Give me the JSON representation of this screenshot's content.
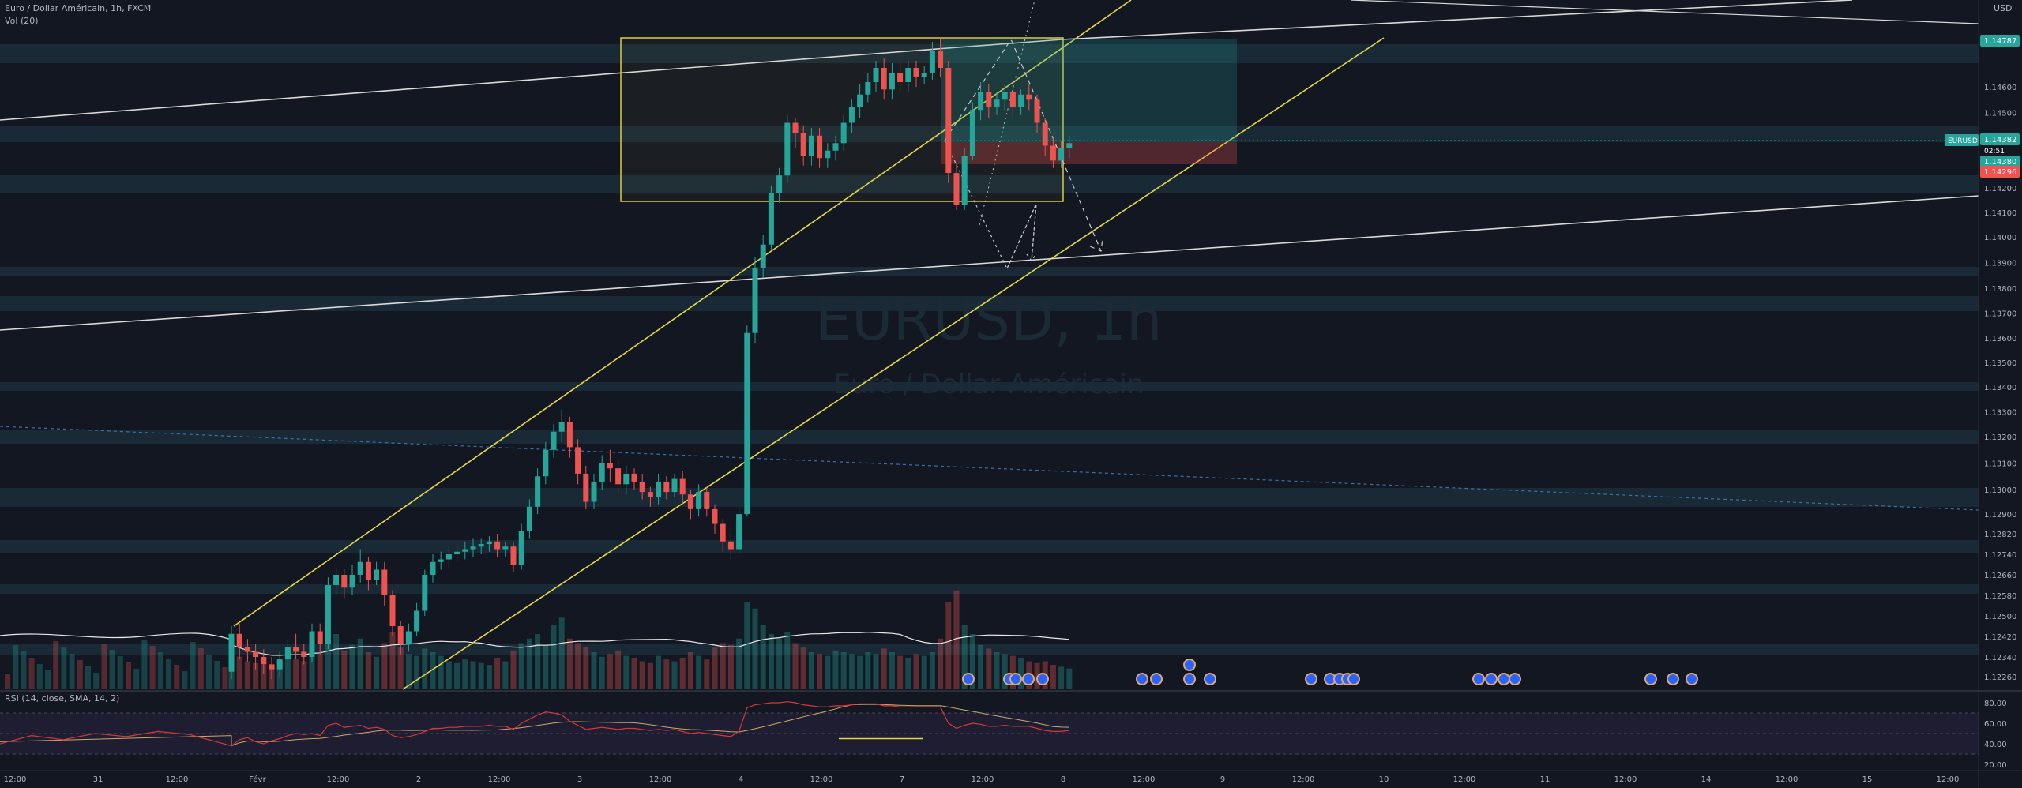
{
  "header": {
    "symbol_line": "Euro / Dollar Américain, 1h, FXCM",
    "vol_label": "Vol (20)",
    "currency": "USD"
  },
  "watermark": {
    "symbol": "EURUSD, 1h",
    "name": "Euro / Dollar Américain"
  },
  "rsi": {
    "label": "RSI (14, close, SMA, 14, 2)",
    "ticks": [
      "80.00",
      "60.00",
      "40.00",
      "20.00"
    ],
    "tick_values": [
      80,
      60,
      40,
      20
    ]
  },
  "colors": {
    "background": "#131722",
    "bull": "#26a69a",
    "bear": "#ef5350",
    "channel": "#e6d84a",
    "zone": "#1f3b47",
    "white_line": "#d9d9d9"
  },
  "price_badges": {
    "symbol": "EURUSD",
    "top_label": "1.14787",
    "current": "1.14382",
    "countdown": "02:51",
    "mid": "1.14380",
    "low": "1.14296"
  },
  "chart_data": {
    "type": "candlestick",
    "title": "EURUSD, 1h",
    "y_axis_ticks": [
      "1.14600",
      "1.14500",
      "1.14400",
      "1.14200",
      "1.14100",
      "1.14000",
      "1.13900",
      "1.13800",
      "1.13700",
      "1.13600",
      "1.13500",
      "1.13400",
      "1.13300",
      "1.13200",
      "1.13100",
      "1.13000",
      "1.12900",
      "1.12820",
      "1.12740",
      "1.12660",
      "1.12580",
      "1.12500",
      "1.12420",
      "1.12340",
      "1.12260"
    ],
    "y_axis_values": [
      1.146,
      1.145,
      1.144,
      1.142,
      1.141,
      1.14,
      1.139,
      1.138,
      1.137,
      1.136,
      1.135,
      1.134,
      1.133,
      1.132,
      1.131,
      1.13,
      1.129,
      1.1282,
      1.1274,
      1.1266,
      1.1258,
      1.125,
      1.1242,
      1.1234,
      1.1226
    ],
    "x_axis_ticks": [
      "12:00",
      "31",
      "12:00",
      "Févr",
      "12:00",
      "2",
      "12:00",
      "3",
      "12:00",
      "4",
      "12:00",
      "7",
      "12:00",
      "8",
      "12:00",
      "9",
      "12:00",
      "10",
      "12:00",
      "11",
      "12:00",
      "14",
      "12:00",
      "15",
      "12:00"
    ],
    "candles": [
      [
        1.1228,
        1.1243,
        1.1225,
        1.1246
      ],
      [
        1.1243,
        1.1238,
        1.1233,
        1.1247
      ],
      [
        1.1238,
        1.1236,
        1.1232,
        1.1241
      ],
      [
        1.1236,
        1.1234,
        1.1229,
        1.1239
      ],
      [
        1.1234,
        1.1231,
        1.1227,
        1.1237
      ],
      [
        1.1231,
        1.1229,
        1.1225,
        1.1234
      ],
      [
        1.1229,
        1.1233,
        1.1226,
        1.1236
      ],
      [
        1.1233,
        1.1238,
        1.123,
        1.1241
      ],
      [
        1.1238,
        1.1236,
        1.1233,
        1.1243
      ],
      [
        1.1236,
        1.1234,
        1.1231,
        1.1239
      ],
      [
        1.1234,
        1.1244,
        1.1232,
        1.1247
      ],
      [
        1.1244,
        1.1239,
        1.1235,
        1.1247
      ],
      [
        1.1239,
        1.1262,
        1.1237,
        1.1265
      ],
      [
        1.1262,
        1.1266,
        1.1258,
        1.1269
      ],
      [
        1.1266,
        1.1261,
        1.1257,
        1.1268
      ],
      [
        1.1261,
        1.1266,
        1.1258,
        1.127
      ],
      [
        1.1266,
        1.1271,
        1.1263,
        1.1276
      ],
      [
        1.1271,
        1.1264,
        1.126,
        1.1273
      ],
      [
        1.1264,
        1.1268,
        1.1262,
        1.1271
      ],
      [
        1.1268,
        1.1258,
        1.1254,
        1.1271
      ],
      [
        1.1258,
        1.1246,
        1.1242,
        1.126
      ],
      [
        1.1246,
        1.1239,
        1.1235,
        1.1248
      ],
      [
        1.1239,
        1.1244,
        1.1236,
        1.1247
      ],
      [
        1.1244,
        1.1252,
        1.1242,
        1.1255
      ],
      [
        1.1252,
        1.1266,
        1.125,
        1.1268
      ],
      [
        1.1266,
        1.1271,
        1.1263,
        1.1274
      ],
      [
        1.1271,
        1.1272,
        1.1268,
        1.1275
      ],
      [
        1.1272,
        1.1274,
        1.1269,
        1.1277
      ],
      [
        1.1274,
        1.1275,
        1.1271,
        1.1278
      ],
      [
        1.1275,
        1.1276,
        1.1272,
        1.1279
      ],
      [
        1.1276,
        1.1277,
        1.1273,
        1.128
      ],
      [
        1.1277,
        1.1278,
        1.1274,
        1.128
      ],
      [
        1.1278,
        1.1279,
        1.1275,
        1.1281
      ],
      [
        1.1279,
        1.1276,
        1.1273,
        1.1282
      ],
      [
        1.1276,
        1.1277,
        1.1273,
        1.1279
      ],
      [
        1.1277,
        1.127,
        1.1267,
        1.1279
      ],
      [
        1.127,
        1.1283,
        1.1268,
        1.1286
      ],
      [
        1.1283,
        1.1293,
        1.128,
        1.1296
      ],
      [
        1.1293,
        1.1305,
        1.129,
        1.1308
      ],
      [
        1.1305,
        1.1315,
        1.1302,
        1.1318
      ],
      [
        1.1315,
        1.1322,
        1.1312,
        1.1325
      ],
      [
        1.1322,
        1.1326,
        1.1318,
        1.1331
      ],
      [
        1.1326,
        1.1316,
        1.1312,
        1.1328
      ],
      [
        1.1316,
        1.1306,
        1.1302,
        1.1319
      ],
      [
        1.1306,
        1.1295,
        1.1292,
        1.1309
      ],
      [
        1.1295,
        1.1303,
        1.1292,
        1.1306
      ],
      [
        1.1303,
        1.131,
        1.13,
        1.1313
      ],
      [
        1.131,
        1.1308,
        1.1303,
        1.1315
      ],
      [
        1.1308,
        1.1302,
        1.1298,
        1.1311
      ],
      [
        1.1302,
        1.1306,
        1.1298,
        1.1309
      ],
      [
        1.1306,
        1.1303,
        1.13,
        1.1308
      ],
      [
        1.1303,
        1.1299,
        1.1296,
        1.1306
      ],
      [
        1.1299,
        1.1297,
        1.1293,
        1.1301
      ],
      [
        1.1297,
        1.1303,
        1.1294,
        1.1306
      ],
      [
        1.1303,
        1.1299,
        1.1296,
        1.1305
      ],
      [
        1.1299,
        1.1304,
        1.1297,
        1.1306
      ],
      [
        1.1304,
        1.1298,
        1.1294,
        1.1307
      ],
      [
        1.1298,
        1.1292,
        1.1288,
        1.13
      ],
      [
        1.1292,
        1.1299,
        1.1289,
        1.1302
      ],
      [
        1.1299,
        1.1292,
        1.1289,
        1.1301
      ],
      [
        1.1292,
        1.1286,
        1.1282,
        1.1294
      ],
      [
        1.1286,
        1.1279,
        1.1275,
        1.1288
      ],
      [
        1.1279,
        1.1276,
        1.1272,
        1.1282
      ],
      [
        1.1276,
        1.129,
        1.1274,
        1.1293
      ],
      [
        1.129,
        1.1362,
        1.1289,
        1.1365
      ],
      [
        1.1362,
        1.1388,
        1.1358,
        1.1392
      ],
      [
        1.1388,
        1.1397,
        1.1384,
        1.1401
      ],
      [
        1.1397,
        1.1418,
        1.1395,
        1.1421
      ],
      [
        1.1418,
        1.1425,
        1.1414,
        1.1428
      ],
      [
        1.1425,
        1.1446,
        1.1422,
        1.1449
      ],
      [
        1.1446,
        1.1442,
        1.1436,
        1.1448
      ],
      [
        1.1442,
        1.1433,
        1.1429,
        1.1445
      ],
      [
        1.1433,
        1.1441,
        1.1429,
        1.1444
      ],
      [
        1.1441,
        1.1432,
        1.1428,
        1.1444
      ],
      [
        1.1432,
        1.1435,
        1.1428,
        1.1438
      ],
      [
        1.1435,
        1.1438,
        1.1431,
        1.1441
      ],
      [
        1.1438,
        1.1446,
        1.1435,
        1.1449
      ],
      [
        1.1446,
        1.1452,
        1.1442,
        1.1455
      ],
      [
        1.1452,
        1.1457,
        1.1448,
        1.1461
      ],
      [
        1.1457,
        1.1462,
        1.1454,
        1.1466
      ],
      [
        1.1462,
        1.1468,
        1.1458,
        1.1471
      ],
      [
        1.1468,
        1.1459,
        1.1455,
        1.1472
      ],
      [
        1.1459,
        1.1466,
        1.1455,
        1.147
      ],
      [
        1.1466,
        1.1462,
        1.1458,
        1.147
      ],
      [
        1.1462,
        1.1468,
        1.1458,
        1.1471
      ],
      [
        1.1468,
        1.1464,
        1.146,
        1.1471
      ],
      [
        1.1464,
        1.1466,
        1.1461,
        1.1469
      ],
      [
        1.1466,
        1.1475,
        1.1463,
        1.1479
      ],
      [
        1.1475,
        1.1468,
        1.1464,
        1.148
      ],
      [
        1.1468,
        1.1426,
        1.1422,
        1.1471
      ],
      [
        1.1426,
        1.1413,
        1.1411,
        1.143
      ],
      [
        1.1413,
        1.1433,
        1.1411,
        1.1436
      ],
      [
        1.1433,
        1.1451,
        1.1431,
        1.1454
      ],
      [
        1.1451,
        1.1458,
        1.1447,
        1.1462
      ],
      [
        1.1458,
        1.1452,
        1.1448,
        1.1461
      ],
      [
        1.1452,
        1.1455,
        1.1449,
        1.1458
      ],
      [
        1.1455,
        1.1458,
        1.1451,
        1.1461
      ],
      [
        1.1458,
        1.1452,
        1.1448,
        1.146
      ],
      [
        1.1452,
        1.1457,
        1.1449,
        1.1459
      ],
      [
        1.1457,
        1.1455,
        1.1451,
        1.1461
      ],
      [
        1.1455,
        1.1446,
        1.1442,
        1.1457
      ],
      [
        1.1446,
        1.1437,
        1.1433,
        1.1448
      ],
      [
        1.1437,
        1.1431,
        1.1428,
        1.144
      ],
      [
        1.1431,
        1.1436,
        1.1428,
        1.1439
      ],
      [
        1.1436,
        1.1438,
        1.1432,
        1.1441
      ]
    ],
    "volume": [
      40,
      35,
      30,
      28,
      26,
      24,
      30,
      35,
      32,
      30,
      45,
      38,
      55,
      60,
      42,
      48,
      55,
      40,
      35,
      50,
      62,
      45,
      38,
      36,
      44,
      40,
      36,
      30,
      28,
      32,
      30,
      28,
      26,
      34,
      30,
      42,
      50,
      55,
      60,
      48,
      70,
      78,
      55,
      50,
      46,
      40,
      35,
      38,
      42,
      36,
      34,
      30,
      28,
      36,
      32,
      30,
      34,
      40,
      36,
      32,
      45,
      50,
      48,
      55,
      95,
      88,
      70,
      60,
      55,
      62,
      50,
      45,
      40,
      38,
      36,
      42,
      40,
      38,
      36,
      40,
      38,
      44,
      40,
      36,
      34,
      38,
      36,
      40,
      55,
      95,
      108,
      70,
      60,
      48,
      44,
      40,
      38,
      36,
      34,
      30,
      28,
      30,
      26,
      24,
      22
    ],
    "rsi_values": [
      38,
      44,
      46,
      42,
      40,
      43,
      45,
      48,
      50,
      49,
      50,
      48,
      58,
      60,
      56,
      57,
      58,
      55,
      56,
      54,
      48,
      46,
      47,
      49,
      52,
      55,
      55,
      56,
      56,
      57,
      57,
      57,
      58,
      57,
      57,
      54,
      60,
      64,
      68,
      71,
      70,
      68,
      62,
      58,
      54,
      55,
      56,
      55,
      54,
      55,
      55,
      54,
      53,
      54,
      53,
      54,
      52,
      50,
      51,
      50,
      49,
      48,
      47,
      52,
      75,
      78,
      79,
      80,
      80,
      81,
      80,
      78,
      77,
      76,
      76,
      77,
      77,
      78,
      79,
      79,
      79,
      77,
      77,
      76,
      76,
      76,
      76,
      76,
      76,
      60,
      55,
      58,
      60,
      59,
      57,
      57,
      58,
      57,
      57,
      57,
      55,
      53,
      52,
      52,
      53
    ],
    "rsi_divergence_value": 45,
    "annotation": "Euro / Dollar Américain"
  }
}
